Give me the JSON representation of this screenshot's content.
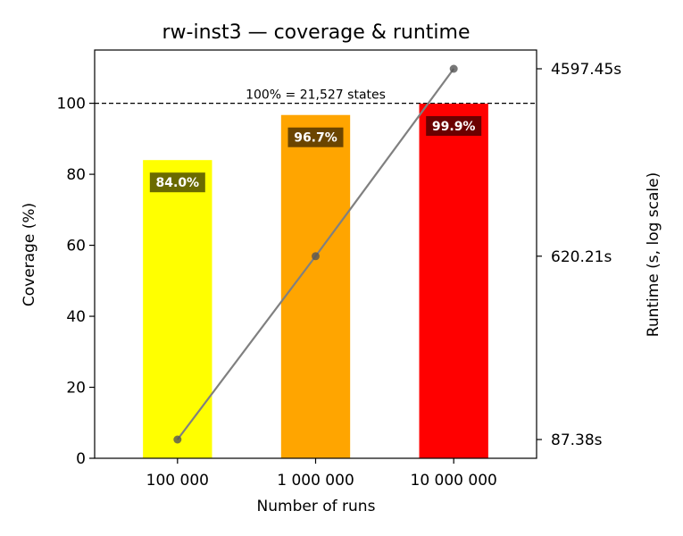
{
  "chart_data": {
    "type": "bar",
    "title": "rw-inst3 — coverage & runtime",
    "xlabel": "Number of runs",
    "ylabel": "Coverage (%)",
    "y2label": "Runtime (s, log scale)",
    "categories": [
      "100 000",
      "1 000 000",
      "10 000 000"
    ],
    "ylim": [
      0,
      115
    ],
    "yticks": [
      0,
      20,
      40,
      60,
      80,
      100
    ],
    "series": [
      {
        "kind": "bar",
        "axis": "left",
        "values": [
          84.0,
          96.7,
          99.9
        ],
        "labels": [
          "84.0%",
          "96.7%",
          "99.9%"
        ],
        "colors": [
          "#ffff00",
          "#ffa500",
          "#ff0000"
        ],
        "label_box_colors": [
          "#6b6b00",
          "#6b4500",
          "#6b0000"
        ]
      },
      {
        "kind": "line",
        "axis": "right",
        "scale": "log",
        "values": [
          87.38,
          620.21,
          4597.45
        ],
        "color": "#808080",
        "marker_color": "#555555"
      }
    ],
    "y2ticks": [
      {
        "value": 87.38,
        "label": "87.38s"
      },
      {
        "value": 620.21,
        "label": "620.21s"
      },
      {
        "value": 4597.45,
        "label": "4597.45s"
      }
    ],
    "reference_line": {
      "value": 100,
      "label": "100% = 21,527 states",
      "style": "dashed"
    },
    "grid": false,
    "legend": "none"
  }
}
